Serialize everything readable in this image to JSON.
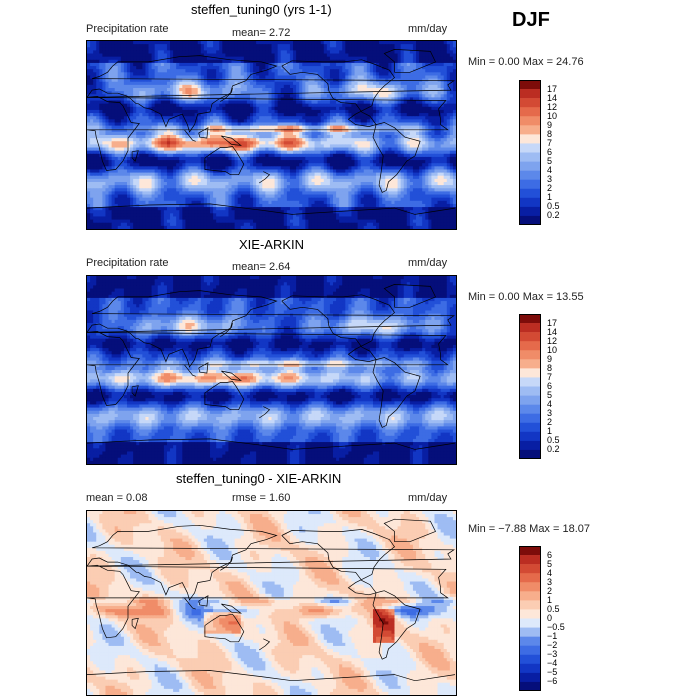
{
  "season": "DJF",
  "palette_pos": [
    "#fde7d9",
    "#fbcdb3",
    "#f7ae8c",
    "#f08c68",
    "#e56a4b",
    "#d34a34",
    "#bb2d22",
    "#9a1812",
    "#7d0c0a"
  ],
  "palette_neg": [
    "#dde9fb",
    "#bfd3f8",
    "#9ebcf3",
    "#7ea3ee",
    "#5c88ea",
    "#3d6ce4",
    "#2250d8",
    "#1236c4",
    "#081ea3",
    "#050e7a"
  ],
  "panels": [
    {
      "title": "steffen_tuning0 (yrs 1-1)",
      "left_label": "Precipitation rate",
      "stat1": "mean=   2.72",
      "stat2": "",
      "units": "mm/day",
      "minmax": "Min =    0.00  Max =  24.76",
      "levels": [
        "17",
        "14",
        "12",
        "10",
        "9",
        "8",
        "7",
        "6",
        "5",
        "4",
        "3",
        "2",
        "1",
        "0.5",
        "0.2"
      ],
      "map_type": "model"
    },
    {
      "title": "XIE-ARKIN",
      "left_label": "Precipitation rate",
      "stat1": "mean=   2.64",
      "stat2": "",
      "units": "mm/day",
      "minmax": "Min =    0.00  Max =  13.55",
      "levels": [
        "17",
        "14",
        "12",
        "10",
        "9",
        "8",
        "7",
        "6",
        "5",
        "4",
        "3",
        "2",
        "1",
        "0.5",
        "0.2"
      ],
      "map_type": "obs"
    },
    {
      "title": "steffen_tuning0 - XIE-ARKIN",
      "left_label": "mean =   0.08",
      "stat1": "",
      "stat2": "rmse =   1.60",
      "units": "mm/day",
      "minmax": "Min =  −7.88  Max =  18.07",
      "levels": [
        "6",
        "5",
        "4",
        "3",
        "2",
        "1",
        "0.5",
        "0",
        "−0.5",
        "−1",
        "−2",
        "−3",
        "−4",
        "−5",
        "−6"
      ],
      "map_type": "diff"
    }
  ],
  "chart_data": [
    {
      "type": "heatmap",
      "title": "steffen_tuning0 (yrs 1-1)",
      "variable": "Precipitation rate",
      "units": "mm/day",
      "mean": 2.72,
      "min": 0.0,
      "max": 24.76,
      "season": "DJF",
      "colorbar_levels": [
        0.2,
        0.5,
        1,
        2,
        3,
        4,
        5,
        6,
        7,
        8,
        9,
        10,
        12,
        14,
        17
      ]
    },
    {
      "type": "heatmap",
      "title": "XIE-ARKIN",
      "variable": "Precipitation rate",
      "units": "mm/day",
      "mean": 2.64,
      "min": 0.0,
      "max": 13.55,
      "season": "DJF",
      "colorbar_levels": [
        0.2,
        0.5,
        1,
        2,
        3,
        4,
        5,
        6,
        7,
        8,
        9,
        10,
        12,
        14,
        17
      ]
    },
    {
      "type": "heatmap",
      "title": "steffen_tuning0 - XIE-ARKIN",
      "units": "mm/day",
      "mean": 0.08,
      "rmse": 1.6,
      "min": -7.88,
      "max": 18.07,
      "season": "DJF",
      "colorbar_levels": [
        -6,
        -5,
        -4,
        -3,
        -2,
        -1,
        -0.5,
        0,
        0.5,
        1,
        2,
        3,
        4,
        5,
        6
      ]
    }
  ]
}
